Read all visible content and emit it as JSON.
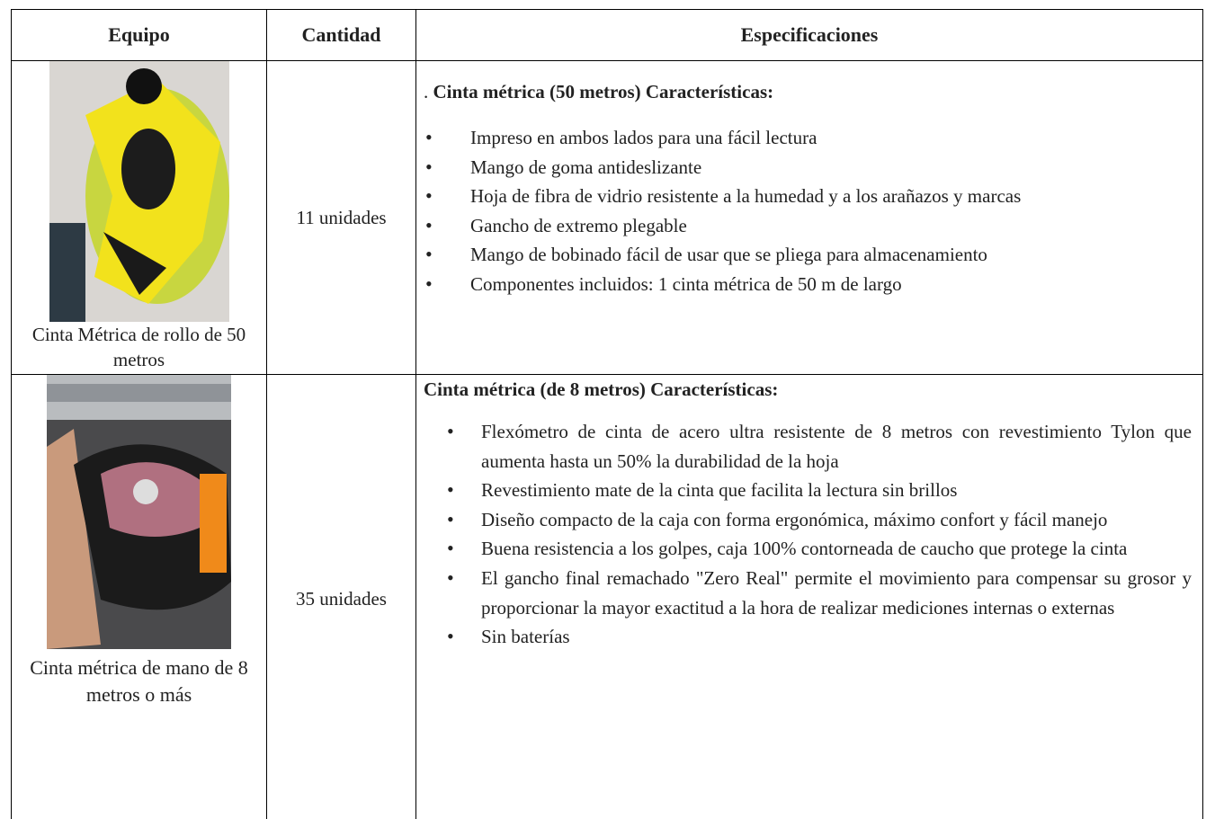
{
  "table": {
    "header": [
      "Equipo",
      "Cantidad",
      "Especificaciones"
    ],
    "rows": [
      {
        "equipo": "Cinta Métrica de rollo de 50 metros",
        "cantidad": "11 unidades",
        "title_prefix": ".",
        "title": "Cinta métrica (50 metros) Características:",
        "items": [
          "Impreso en ambos lados para una fácil lectura",
          "Mango de goma antideslizante",
          "Hoja de fibra de vidrio resistente a la humedad y a los arañazos y marcas",
          "Gancho de extremo plegable",
          "Mango de bobinado fácil de usar que se pliega para almacenamiento",
          "Componentes incluidos: 1 cinta métrica de 50 m de largo"
        ]
      },
      {
        "equipo": "Cinta métrica de mano de 8 metros o más",
        "cantidad": "35 unidades",
        "title": "Cinta métrica (de 8 metros) Características:",
        "items": [
          "Flexómetro de cinta de acero ultra resistente de 8 metros con revestimiento Tylon que aumenta hasta un 50% la durabilidad de la hoja",
          "Revestimiento mate de la cinta que facilita la lectura sin brillos",
          "Diseño compacto de la caja con forma ergonómica, máximo confort y fácil manejo",
          "Buena resistencia a los golpes, caja 100% contorneada de caucho que protege la cinta",
          "El gancho final remachado \"Zero Real\" permite el movimiento para compensar su grosor y proporcionar la mayor exactitud a la hora de realizar mediciones internas o externas",
          "Sin baterías"
        ]
      }
    ]
  }
}
